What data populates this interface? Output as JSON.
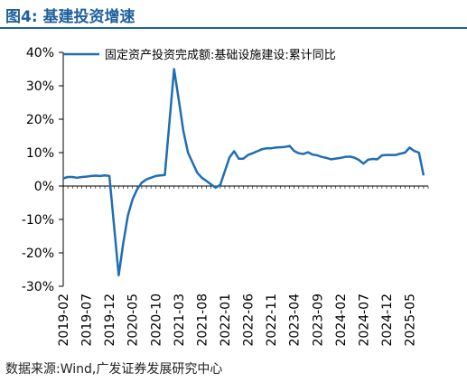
{
  "figure": {
    "title": "图4:  基建投资增速",
    "source": "数据来源:Wind,广发证券发展研究中心"
  },
  "chart_data": {
    "type": "line",
    "title": "",
    "xlabel": "",
    "ylabel": "",
    "ylim": [
      -0.3,
      0.4
    ],
    "yticks": [
      "40%",
      "30%",
      "20%",
      "10%",
      "0%",
      "-10%",
      "-20%",
      "-30%"
    ],
    "ytick_values": [
      0.4,
      0.3,
      0.2,
      0.1,
      0.0,
      -0.1,
      -0.2,
      -0.3
    ],
    "xticks": [
      "2019-02",
      "2019-07",
      "2019-12",
      "2020-05",
      "2020-10",
      "2021-03",
      "2021-08",
      "2022-01",
      "2022-06",
      "2022-11",
      "2023-04",
      "2023-09",
      "2024-02",
      "2024-07",
      "2024-12",
      "2025-05"
    ],
    "legend": "top-left",
    "grid": false,
    "series": [
      {
        "name": "固定资产投资完成额:基础设施建设:累计同比",
        "color": "#1f6db5",
        "x": [
          "2019-02",
          "2019-03",
          "2019-04",
          "2019-05",
          "2019-06",
          "2019-07",
          "2019-08",
          "2019-09",
          "2019-10",
          "2019-11",
          "2019-12",
          "2020-02",
          "2020-03",
          "2020-04",
          "2020-05",
          "2020-06",
          "2020-07",
          "2020-08",
          "2020-09",
          "2020-10",
          "2020-11",
          "2020-12",
          "2021-02",
          "2021-03",
          "2021-04",
          "2021-05",
          "2021-06",
          "2021-07",
          "2021-08",
          "2021-09",
          "2021-10",
          "2021-11",
          "2021-12",
          "2022-02",
          "2022-03",
          "2022-04",
          "2022-05",
          "2022-06",
          "2022-07",
          "2022-08",
          "2022-09",
          "2022-10",
          "2022-11",
          "2022-12",
          "2023-02",
          "2023-03",
          "2023-04",
          "2023-05",
          "2023-06",
          "2023-07",
          "2023-08",
          "2023-09",
          "2023-10",
          "2023-11",
          "2023-12",
          "2024-02",
          "2024-03",
          "2024-04",
          "2024-05",
          "2024-06",
          "2024-07",
          "2024-08",
          "2024-09",
          "2024-10",
          "2024-11",
          "2024-12",
          "2025-02",
          "2025-03",
          "2025-04",
          "2025-05",
          "2025-06",
          "2025-07",
          "2025-08"
        ],
        "values": [
          0.023,
          0.027,
          0.027,
          0.025,
          0.027,
          0.028,
          0.03,
          0.031,
          0.03,
          0.032,
          0.03,
          -0.267,
          -0.17,
          -0.088,
          -0.04,
          -0.01,
          0.01,
          0.02,
          0.025,
          0.03,
          0.032,
          0.033,
          0.35,
          0.26,
          0.165,
          0.1,
          0.07,
          0.04,
          0.025,
          0.015,
          0.005,
          -0.005,
          0.004,
          0.086,
          0.104,
          0.082,
          0.082,
          0.093,
          0.098,
          0.104,
          0.11,
          0.113,
          0.113,
          0.115,
          0.117,
          0.12,
          0.105,
          0.098,
          0.096,
          0.101,
          0.094,
          0.092,
          0.087,
          0.084,
          0.08,
          0.084,
          0.087,
          0.088,
          0.085,
          0.078,
          0.067,
          0.079,
          0.081,
          0.08,
          0.092,
          0.093,
          0.093,
          0.097,
          0.1,
          0.115,
          0.105,
          0.1,
          0.032
        ]
      }
    ]
  }
}
